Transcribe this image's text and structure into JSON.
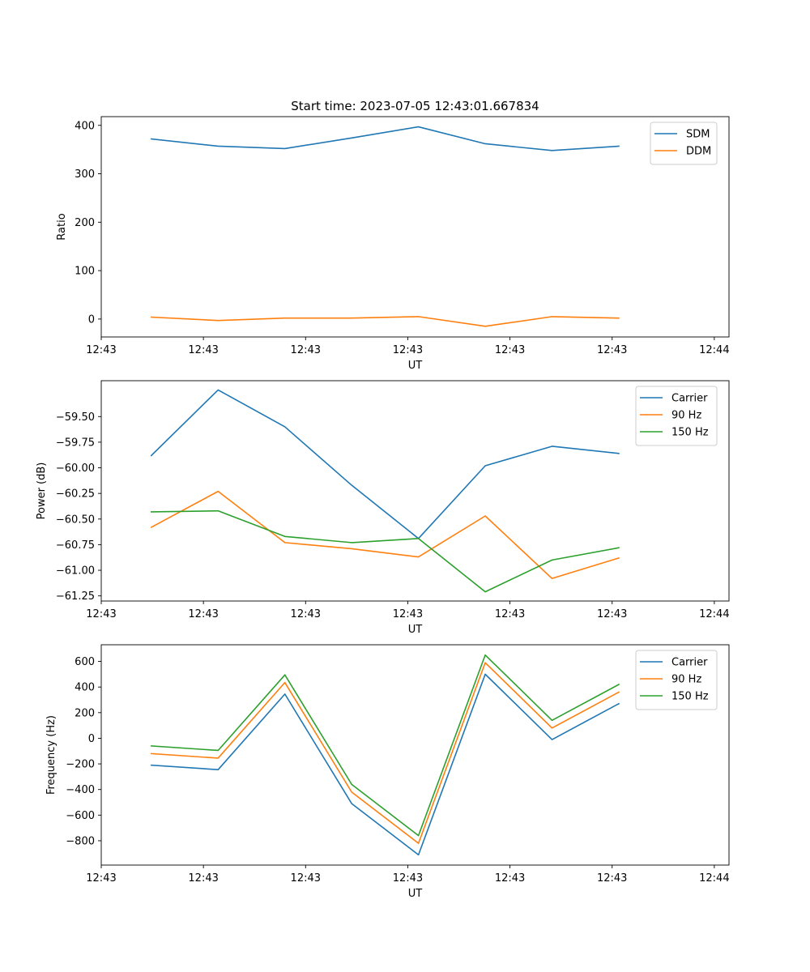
{
  "chart_data": [
    {
      "type": "line",
      "title": "Start time: 2023-07-05 12:43:01.667834",
      "xlabel": "UT",
      "ylabel": "Ratio",
      "x": [
        0,
        1,
        2,
        3,
        4,
        5,
        6,
        7
      ],
      "xlim": [
        -0.75,
        8.65
      ],
      "x_ticks": [
        -0.75,
        0.78,
        2.31,
        3.84,
        5.37,
        6.9,
        8.43
      ],
      "x_tick_labels": [
        "12:43",
        "12:43",
        "12:43",
        "12:43",
        "12:43",
        "12:43",
        "12:44"
      ],
      "ylim": [
        -37,
        418
      ],
      "y_ticks": [
        0,
        100,
        200,
        300,
        400
      ],
      "y_tick_labels": [
        "0",
        "100",
        "200",
        "300",
        "400"
      ],
      "legend_position": "top-right",
      "series": [
        {
          "name": "SDM",
          "color": "#1f77b4",
          "values": [
            372,
            357,
            352,
            374,
            397,
            362,
            348,
            357
          ]
        },
        {
          "name": "DDM",
          "color": "#ff7f0e",
          "values": [
            4,
            -3,
            2,
            2,
            5,
            -15,
            5,
            2
          ]
        }
      ]
    },
    {
      "type": "line",
      "title": "",
      "xlabel": "UT",
      "ylabel": "Power (dB)",
      "x": [
        0,
        1,
        2,
        3,
        4,
        5,
        6,
        7
      ],
      "xlim": [
        -0.75,
        8.65
      ],
      "x_ticks": [
        -0.75,
        0.78,
        2.31,
        3.84,
        5.37,
        6.9,
        8.43
      ],
      "x_tick_labels": [
        "12:43",
        "12:43",
        "12:43",
        "12:43",
        "12:43",
        "12:43",
        "12:44"
      ],
      "ylim": [
        -61.3,
        -59.15
      ],
      "y_ticks": [
        -61.25,
        -61.0,
        -60.75,
        -60.5,
        -60.25,
        -60.0,
        -59.75,
        -59.5
      ],
      "y_tick_labels": [
        "−61.25",
        "−61.00",
        "−60.75",
        "−60.50",
        "−60.25",
        "−60.00",
        "−59.75",
        "−59.50"
      ],
      "legend_position": "top-right",
      "series": [
        {
          "name": "Carrier",
          "color": "#1f77b4",
          "values": [
            -59.88,
            -59.24,
            -59.6,
            -60.17,
            -60.69,
            -59.98,
            -59.79,
            -59.86
          ]
        },
        {
          "name": "90 Hz",
          "color": "#ff7f0e",
          "values": [
            -60.58,
            -60.23,
            -60.73,
            -60.79,
            -60.87,
            -60.47,
            -61.08,
            -60.88
          ]
        },
        {
          "name": "150 Hz",
          "color": "#2ca02c",
          "values": [
            -60.43,
            -60.42,
            -60.67,
            -60.73,
            -60.69,
            -61.21,
            -60.9,
            -60.78
          ]
        }
      ]
    },
    {
      "type": "line",
      "title": "",
      "xlabel": "UT",
      "ylabel": "Frequency (Hz)",
      "x": [
        0,
        1,
        2,
        3,
        4,
        5,
        6,
        7
      ],
      "xlim": [
        -0.75,
        8.65
      ],
      "x_ticks": [
        -0.75,
        0.78,
        2.31,
        3.84,
        5.37,
        6.9,
        8.43
      ],
      "x_tick_labels": [
        "12:43",
        "12:43",
        "12:43",
        "12:43",
        "12:43",
        "12:43",
        "12:44"
      ],
      "ylim": [
        -990,
        730
      ],
      "y_ticks": [
        -800,
        -600,
        -400,
        -200,
        0,
        200,
        400,
        600
      ],
      "y_tick_labels": [
        "−800",
        "−600",
        "−400",
        "−200",
        "0",
        "200",
        "400",
        "600"
      ],
      "legend_position": "top-right",
      "series": [
        {
          "name": "Carrier",
          "color": "#1f77b4",
          "values": [
            -210,
            -245,
            345,
            -510,
            -910,
            500,
            -10,
            270
          ]
        },
        {
          "name": "90 Hz",
          "color": "#ff7f0e",
          "values": [
            -120,
            -155,
            435,
            -420,
            -820,
            590,
            80,
            360
          ]
        },
        {
          "name": "150 Hz",
          "color": "#2ca02c",
          "values": [
            -60,
            -95,
            495,
            -360,
            -760,
            650,
            140,
            420
          ]
        }
      ]
    }
  ]
}
